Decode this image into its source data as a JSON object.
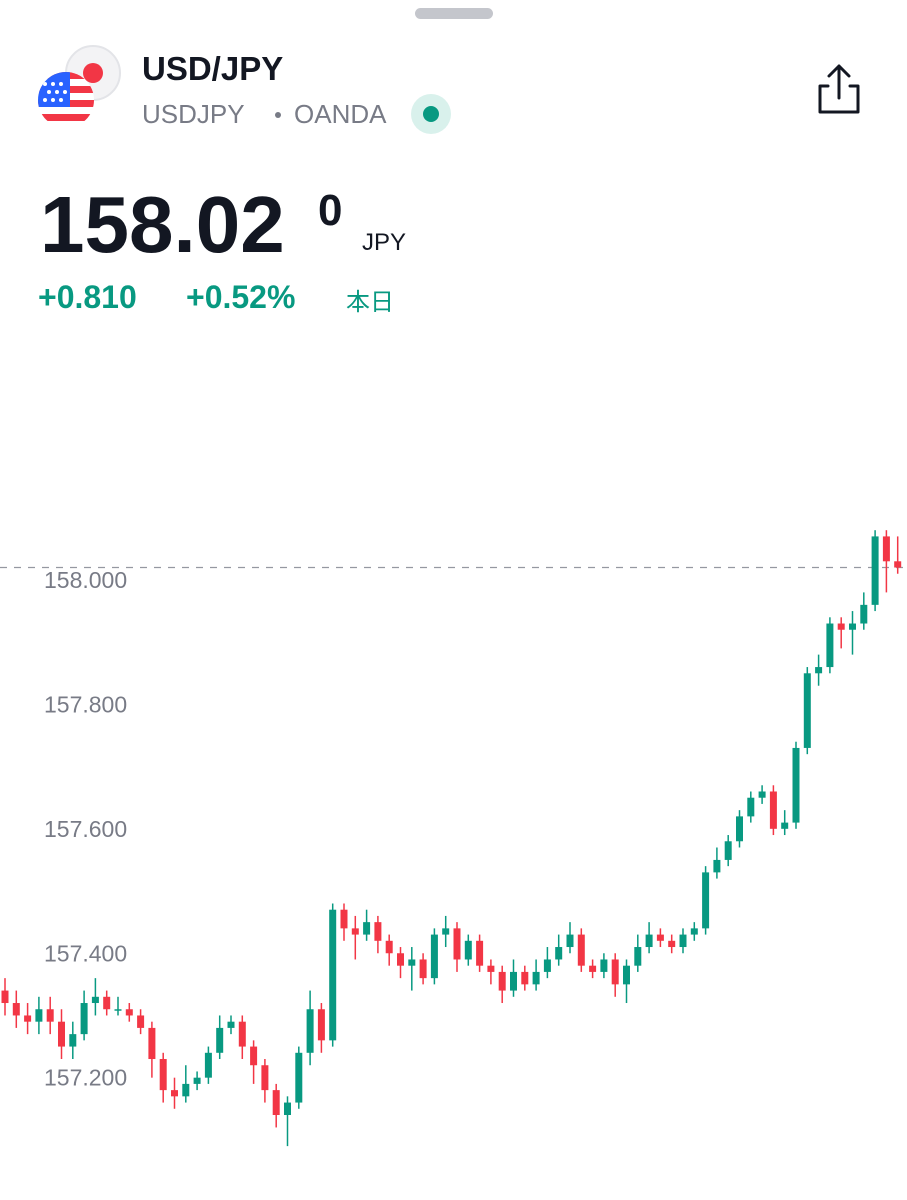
{
  "header": {
    "symbol": "USD/JPY",
    "ticker": "USDJPY",
    "exchange": "OANDA",
    "price": "158.02",
    "price_sup": "0",
    "currency": "JPY",
    "change": "+0.810",
    "change_pct": "+0.52%",
    "period": "本日"
  },
  "chart_data": {
    "type": "candlestick",
    "up_color": "#089981",
    "down_color": "#f23645",
    "last_price": 158.02,
    "ylim": [
      157.05,
      158.45
    ],
    "yticks": [
      {
        "value": 157.2,
        "label": "157.200"
      },
      {
        "value": 157.4,
        "label": "157.400"
      },
      {
        "value": 157.6,
        "label": "157.600"
      },
      {
        "value": 157.8,
        "label": "157.800"
      },
      {
        "value": 158.0,
        "label": "158.000"
      }
    ],
    "open": [
      157.34,
      157.32,
      157.3,
      157.29,
      157.31,
      157.29,
      157.25,
      157.27,
      157.32,
      157.33,
      157.31,
      157.31,
      157.3,
      157.28,
      157.23,
      157.18,
      157.17,
      157.19,
      157.2,
      157.24,
      157.28,
      157.29,
      157.25,
      157.22,
      157.18,
      157.14,
      157.16,
      157.24,
      157.31,
      157.26,
      157.47,
      157.44,
      157.43,
      157.45,
      157.42,
      157.4,
      157.38,
      157.39,
      157.36,
      157.43,
      157.44,
      157.39,
      157.42,
      157.38,
      157.37,
      157.34,
      157.37,
      157.35,
      157.37,
      157.39,
      157.41,
      157.43,
      157.38,
      157.37,
      157.39,
      157.35,
      157.38,
      157.41,
      157.43,
      157.42,
      157.41,
      157.43,
      157.44,
      157.53,
      157.55,
      157.58,
      157.62,
      157.65,
      157.66,
      157.6,
      157.61,
      157.73,
      157.85,
      157.86,
      157.93,
      157.92,
      157.93,
      157.96,
      158.07,
      158.03
    ],
    "high": [
      157.36,
      157.34,
      157.32,
      157.33,
      157.33,
      157.31,
      157.29,
      157.34,
      157.36,
      157.34,
      157.33,
      157.32,
      157.31,
      157.29,
      157.24,
      157.2,
      157.22,
      157.21,
      157.25,
      157.3,
      157.3,
      157.3,
      157.26,
      157.23,
      157.19,
      157.17,
      157.25,
      157.34,
      157.32,
      157.48,
      157.48,
      157.46,
      157.47,
      157.46,
      157.43,
      157.41,
      157.41,
      157.4,
      157.44,
      157.46,
      157.45,
      157.43,
      157.43,
      157.39,
      157.38,
      157.39,
      157.38,
      157.39,
      157.41,
      157.43,
      157.45,
      157.44,
      157.39,
      157.4,
      157.4,
      157.39,
      157.43,
      157.45,
      157.44,
      157.43,
      157.44,
      157.45,
      157.54,
      157.57,
      157.59,
      157.63,
      157.66,
      157.67,
      157.67,
      157.63,
      157.74,
      157.86,
      157.88,
      157.94,
      157.94,
      157.95,
      157.98,
      158.08,
      158.08,
      158.07
    ],
    "low": [
      157.3,
      157.28,
      157.27,
      157.27,
      157.27,
      157.23,
      157.23,
      157.26,
      157.3,
      157.3,
      157.3,
      157.29,
      157.27,
      157.2,
      157.16,
      157.15,
      157.16,
      157.18,
      157.19,
      157.23,
      157.27,
      157.23,
      157.19,
      157.16,
      157.12,
      157.09,
      157.15,
      157.22,
      157.24,
      157.25,
      157.42,
      157.39,
      157.42,
      157.4,
      157.38,
      157.36,
      157.34,
      157.35,
      157.35,
      157.41,
      157.37,
      157.38,
      157.37,
      157.35,
      157.32,
      157.33,
      157.34,
      157.34,
      157.36,
      157.38,
      157.4,
      157.37,
      157.36,
      157.36,
      157.33,
      157.32,
      157.37,
      157.4,
      157.41,
      157.4,
      157.4,
      157.42,
      157.43,
      157.52,
      157.54,
      157.57,
      157.61,
      157.64,
      157.59,
      157.59,
      157.6,
      157.72,
      157.83,
      157.85,
      157.89,
      157.88,
      157.92,
      157.95,
      157.98,
      158.01
    ],
    "close": [
      157.32,
      157.3,
      157.29,
      157.31,
      157.29,
      157.25,
      157.27,
      157.32,
      157.33,
      157.31,
      157.31,
      157.3,
      157.28,
      157.23,
      157.18,
      157.17,
      157.19,
      157.2,
      157.24,
      157.28,
      157.29,
      157.25,
      157.22,
      157.18,
      157.14,
      157.16,
      157.24,
      157.31,
      157.26,
      157.47,
      157.44,
      157.43,
      157.45,
      157.42,
      157.4,
      157.38,
      157.39,
      157.36,
      157.43,
      157.44,
      157.39,
      157.42,
      157.38,
      157.37,
      157.34,
      157.37,
      157.35,
      157.37,
      157.39,
      157.41,
      157.43,
      157.38,
      157.37,
      157.39,
      157.35,
      157.38,
      157.41,
      157.43,
      157.42,
      157.41,
      157.43,
      157.44,
      157.53,
      157.55,
      157.58,
      157.62,
      157.65,
      157.66,
      157.6,
      157.61,
      157.73,
      157.85,
      157.86,
      157.93,
      157.92,
      157.93,
      157.96,
      158.07,
      158.03,
      158.02
    ]
  }
}
